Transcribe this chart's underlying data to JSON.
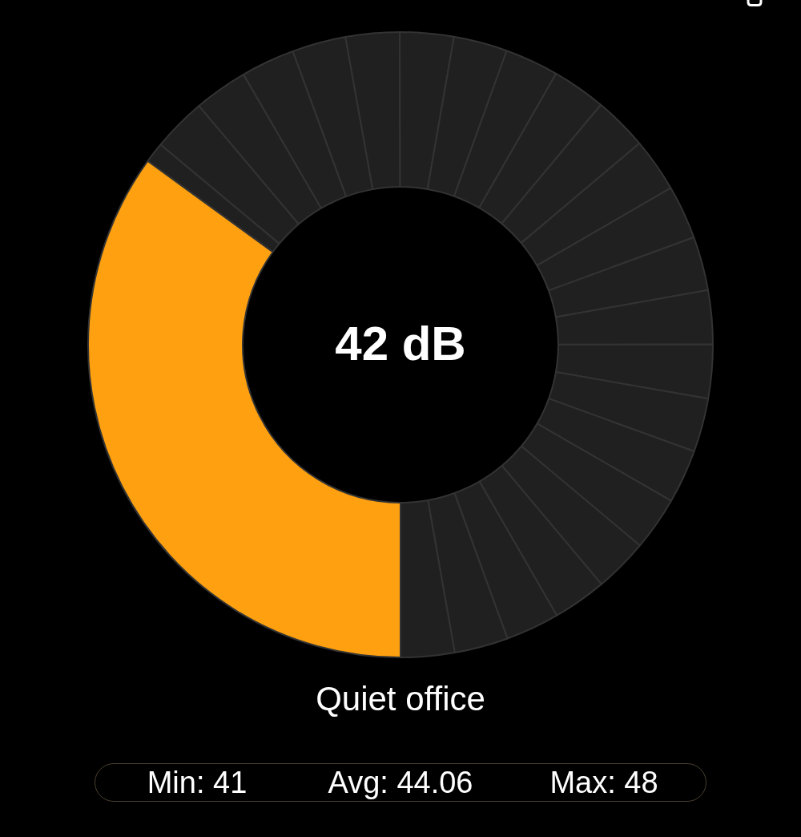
{
  "chart_data": {
    "type": "donut",
    "title": "42 dB",
    "subtitle": "Quiet office",
    "annotations": [
      "Min: 41",
      "Avg: 44.06",
      "Max: 48"
    ],
    "categories": [
      null,
      null,
      null,
      null,
      null,
      null,
      null,
      null,
      null,
      null,
      null,
      null,
      null,
      null,
      null,
      null,
      null,
      null,
      null,
      null,
      null,
      null,
      null,
      null,
      null
    ],
    "values": [
      35,
      1.06,
      2.78,
      2.78,
      2.78,
      2.78,
      2.78,
      2.78,
      2.78,
      2.78,
      2.78,
      2.78,
      2.78,
      2.78,
      2.78,
      2.78,
      2.78,
      2.78,
      2.78,
      2.78,
      2.78,
      2.78,
      2.78,
      2.78,
      2.78
    ],
    "colors": [
      "#fea00f",
      "#202020",
      "#202020",
      "#202020",
      "#202020",
      "#202020",
      "#202020",
      "#202020",
      "#202020",
      "#202020",
      "#202020",
      "#202020",
      "#202020",
      "#202020",
      "#202020",
      "#202020",
      "#202020",
      "#202020",
      "#202020",
      "#202020",
      "#202020",
      "#202020",
      "#202020",
      "#202020",
      "#202020"
    ]
  }
}
